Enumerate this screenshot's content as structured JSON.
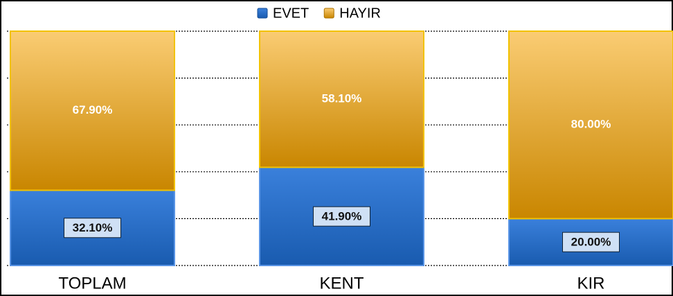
{
  "chart_data": {
    "type": "stacked_bar",
    "categories": [
      "TOPLAM",
      "KENT",
      "KIR"
    ],
    "series": [
      {
        "name": "EVET",
        "color": "#1f6fd6",
        "values": [
          32.1,
          41.9,
          20
        ],
        "value_labels": [
          "32.10%",
          "41.90%",
          "20.00%"
        ]
      },
      {
        "name": "HAYIR",
        "color": "#f5a300",
        "values": [
          67.9,
          58.1,
          80
        ],
        "value_labels": [
          "67.90%",
          "58.10%",
          "80.00%"
        ]
      }
    ],
    "ylim": [
      0,
      100
    ],
    "yticks": [
      0,
      20,
      40,
      60,
      80,
      100
    ],
    "grid": true,
    "legend": "top"
  }
}
